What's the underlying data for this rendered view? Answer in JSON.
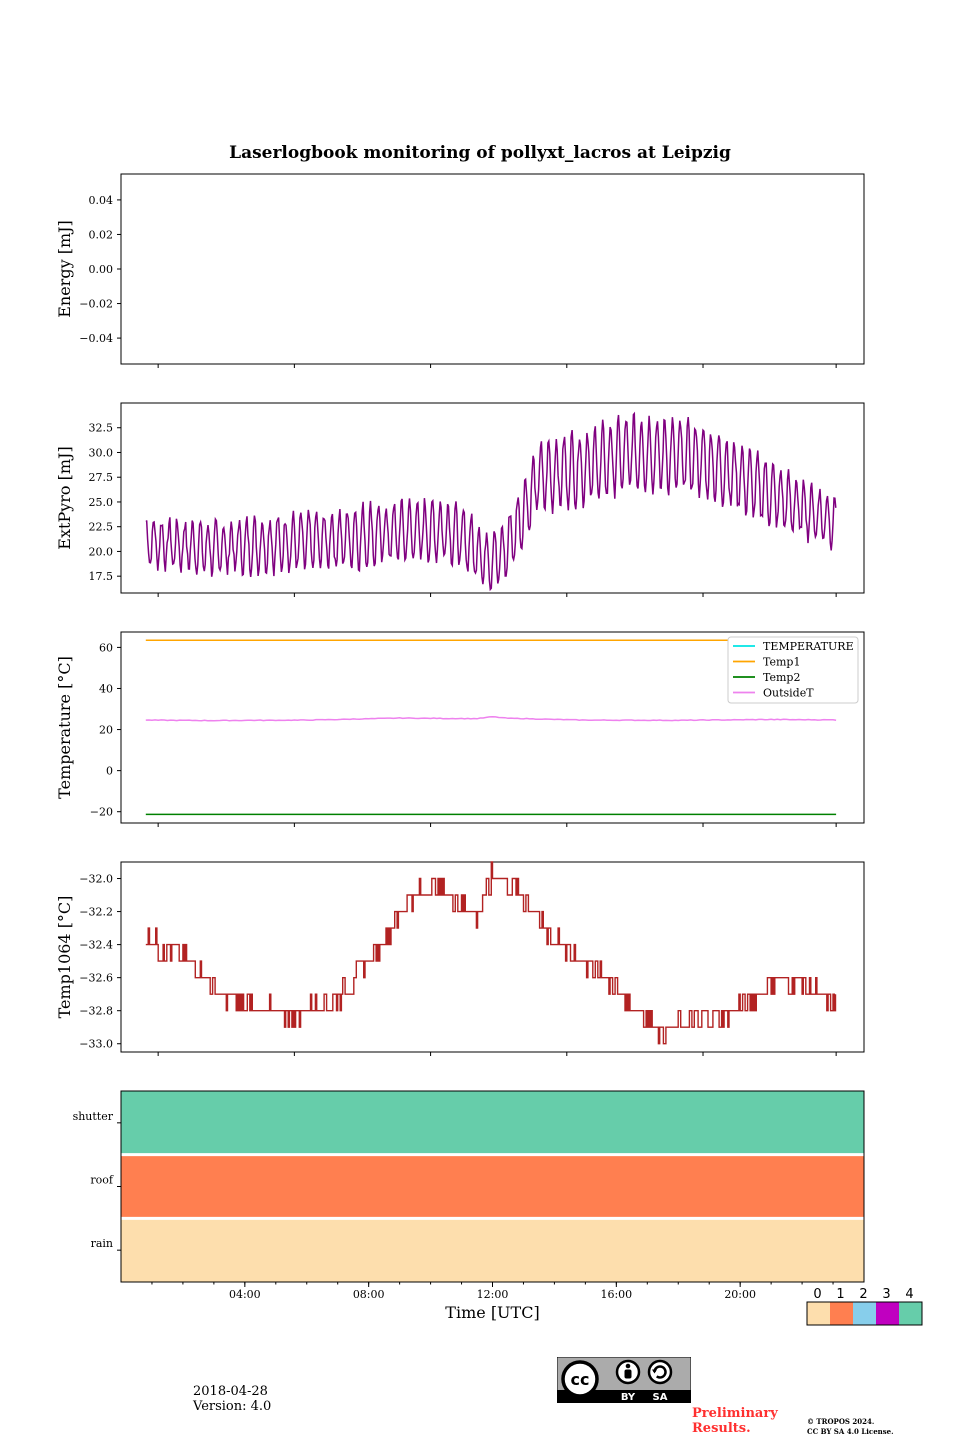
{
  "figure": {
    "title": "Laserlogbook monitoring of pollyxt_lacros at Leipzig",
    "date": "2018-04-28",
    "version": "Version: 4.0",
    "preliminary": [
      "Preliminary",
      "Results."
    ],
    "copyright": [
      "© TROPOS 2024.",
      "CC BY SA 4.0 License."
    ],
    "license_badge": {
      "cc": "cc",
      "by": "BY",
      "sa": "SA"
    }
  },
  "chart_data": [
    {
      "type": "line",
      "panel": "energy",
      "ylabel": "Energy [mJ]",
      "ylim": [
        -0.055,
        0.055
      ],
      "yticks": [
        0.04,
        0.02,
        0.0,
        -0.02,
        -0.04
      ],
      "ytick_labels": [
        "0.04",
        "0.02",
        "0.00",
        "−0.02",
        "−0.04"
      ],
      "series": []
    },
    {
      "type": "line",
      "panel": "extpyro",
      "ylabel": "ExtPyro [mJ]",
      "ylim": [
        15.8,
        35.0
      ],
      "yticks": [
        17.5,
        20.0,
        22.5,
        25.0,
        27.5,
        30.0,
        32.5
      ],
      "ytick_labels": [
        "17.5",
        "20.0",
        "22.5",
        "25.0",
        "27.5",
        "30.0",
        "32.5"
      ],
      "color": "#800080",
      "x_hours_range": [
        0.8,
        23.1
      ],
      "baseline": [
        [
          0.8,
          21.0
        ],
        [
          3.0,
          20.3
        ],
        [
          5.0,
          20.8
        ],
        [
          7.0,
          21.2
        ],
        [
          9.0,
          22.0
        ],
        [
          10.5,
          22.2
        ],
        [
          11.2,
          21.0
        ],
        [
          11.8,
          19.2
        ],
        [
          12.3,
          19.5
        ],
        [
          12.8,
          22.5
        ],
        [
          13.5,
          27.5
        ],
        [
          15.0,
          28.5
        ],
        [
          16.5,
          30.0
        ],
        [
          18.5,
          29.5
        ],
        [
          20.0,
          27.5
        ],
        [
          21.5,
          25.0
        ],
        [
          23.1,
          23.0
        ]
      ],
      "amplitude": [
        [
          0.8,
          2.2
        ],
        [
          5.0,
          2.6
        ],
        [
          8.0,
          3.0
        ],
        [
          11.0,
          2.8
        ],
        [
          12.5,
          3.0
        ],
        [
          14.5,
          3.6
        ],
        [
          17.0,
          3.6
        ],
        [
          20.0,
          3.2
        ],
        [
          23.1,
          2.4
        ]
      ],
      "period_hours": 0.25
    },
    {
      "type": "line",
      "panel": "temperature",
      "ylabel": "Temperature [°C]",
      "ylim": [
        -25.5,
        67.5
      ],
      "yticks": [
        60,
        40,
        20,
        0,
        -20
      ],
      "ytick_labels": [
        "60",
        "40",
        "20",
        "0",
        "−20"
      ],
      "legend": "top-right",
      "series": [
        {
          "name": "TEMPERATURE",
          "color": "#00e5e5",
          "points": []
        },
        {
          "name": "Temp1",
          "color": "#ffa500",
          "points": [
            [
              0.8,
              63.5
            ],
            [
              23.1,
              63.5
            ]
          ]
        },
        {
          "name": "Temp2",
          "color": "#008000",
          "points": [
            [
              0.8,
              -21.3
            ],
            [
              23.1,
              -21.3
            ]
          ]
        },
        {
          "name": "OutsideT",
          "color": "#ee82ee",
          "points": [
            [
              0.8,
              24.6
            ],
            [
              3.0,
              24.4
            ],
            [
              6.0,
              24.6
            ],
            [
              9.0,
              25.6
            ],
            [
              11.5,
              25.3
            ],
            [
              12.0,
              26.2
            ],
            [
              12.5,
              25.5
            ],
            [
              15.0,
              24.6
            ],
            [
              18.0,
              24.5
            ],
            [
              21.0,
              24.9
            ],
            [
              23.1,
              24.7
            ]
          ]
        }
      ]
    },
    {
      "type": "line",
      "panel": "temp1064",
      "ylabel": "Temp1064 [°C]",
      "ylim": [
        -33.05,
        -31.9
      ],
      "yticks": [
        -32.0,
        -32.2,
        -32.4,
        -32.6,
        -32.8,
        -33.0
      ],
      "ytick_labels": [
        "−32.0",
        "−32.2",
        "−32.4",
        "−32.6",
        "−32.8",
        "−33.0"
      ],
      "color": "#b22222",
      "points": [
        [
          0.8,
          -32.4
        ],
        [
          2.0,
          -32.5
        ],
        [
          3.0,
          -32.7
        ],
        [
          4.0,
          -32.8
        ],
        [
          5.5,
          -32.85
        ],
        [
          7.0,
          -32.75
        ],
        [
          8.5,
          -32.4
        ],
        [
          9.5,
          -32.1
        ],
        [
          10.5,
          -32.1
        ],
        [
          11.5,
          -32.25
        ],
        [
          12.0,
          -32.0
        ],
        [
          12.8,
          -32.1
        ],
        [
          14.0,
          -32.4
        ],
        [
          15.5,
          -32.6
        ],
        [
          16.5,
          -32.8
        ],
        [
          17.5,
          -32.95
        ],
        [
          18.5,
          -32.9
        ],
        [
          20.0,
          -32.8
        ],
        [
          21.0,
          -32.65
        ],
        [
          22.0,
          -32.65
        ],
        [
          23.1,
          -32.8
        ]
      ]
    },
    {
      "type": "heatmap",
      "panel": "status",
      "rows": [
        "shutter",
        "roof",
        "rain"
      ],
      "row_values": [
        4,
        1,
        0
      ],
      "xlabel": "Time [UTC]",
      "xticks": [
        "04:00",
        "08:00",
        "12:00",
        "16:00",
        "20:00"
      ],
      "xtick_hours": [
        4,
        8,
        12,
        16,
        20
      ],
      "xlim_hours": [
        0,
        24
      ],
      "colorbar": {
        "ticks": [
          "0",
          "1",
          "2",
          "3",
          "4"
        ],
        "colors": [
          "#fddead",
          "#ff7f50",
          "#87ceeb",
          "#c000c0",
          "#66cdaa"
        ]
      }
    }
  ]
}
